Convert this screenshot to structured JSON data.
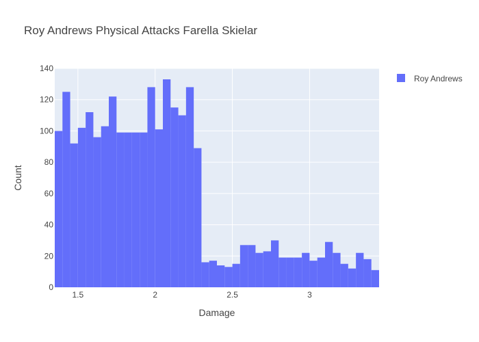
{
  "chart_data": {
    "type": "bar",
    "title": "Roy Andrews Physical Attacks Farella Skielar",
    "xlabel": "Damage",
    "ylabel": "Count",
    "xlim": [
      1.35,
      3.45
    ],
    "ylim": [
      0,
      140
    ],
    "x_ticks": [
      1.5,
      2,
      2.5,
      3
    ],
    "x_tick_labels": [
      "1.5",
      "2",
      "2.5",
      "3"
    ],
    "y_ticks": [
      0,
      20,
      40,
      60,
      80,
      100,
      120,
      140
    ],
    "y_tick_labels": [
      "0",
      "20",
      "40",
      "60",
      "80",
      "100",
      "120",
      "140"
    ],
    "grid": true,
    "legend_position": "top-right",
    "bin_width": 0.05,
    "bin_start": 1.35,
    "series": [
      {
        "name": "Roy Andrews",
        "color": "#636efa",
        "values": [
          100,
          125,
          92,
          102,
          112,
          96,
          103,
          122,
          99,
          99,
          99,
          99,
          128,
          101,
          133,
          115,
          110,
          128,
          89,
          16,
          17,
          14,
          13,
          15,
          27,
          27,
          22,
          23,
          30,
          19,
          19,
          19,
          22,
          17,
          19,
          29,
          22,
          15,
          12,
          22,
          18,
          11
        ]
      }
    ]
  }
}
